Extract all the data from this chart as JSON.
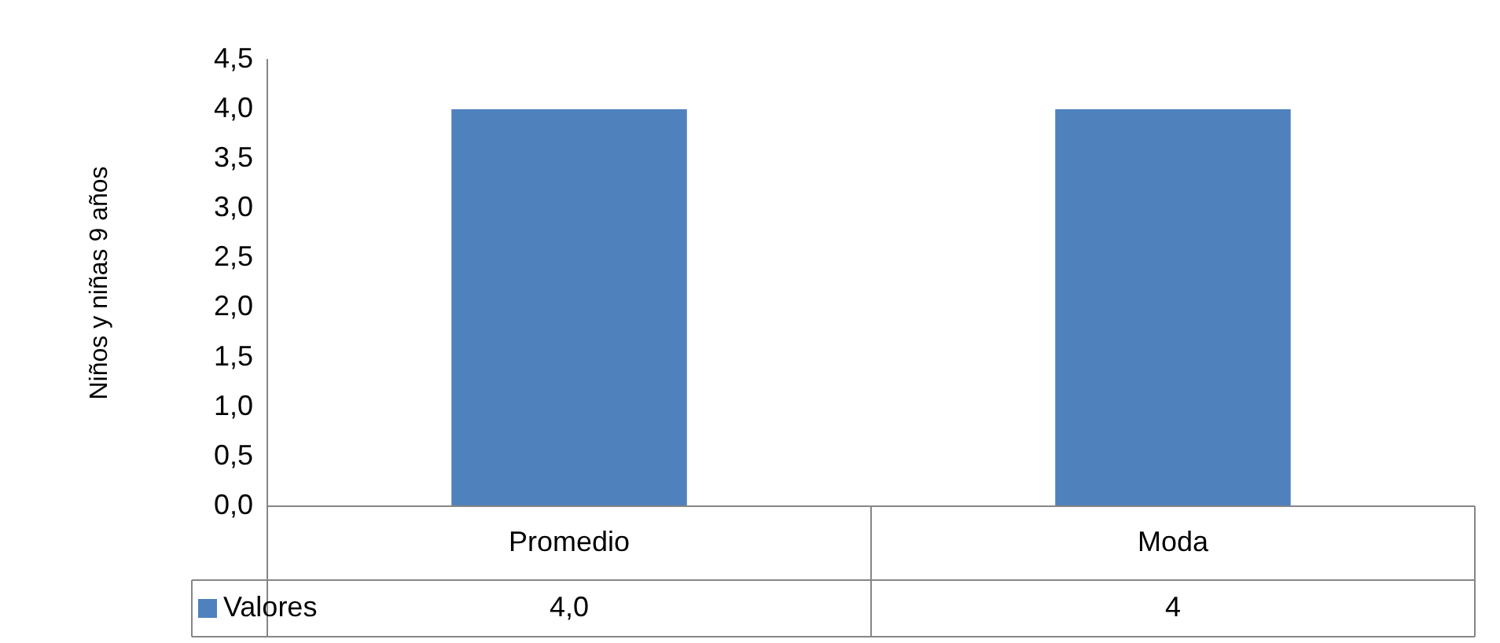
{
  "chart_data": {
    "type": "bar",
    "ylabel": "Niños y niñas 9 años",
    "categories": [
      "Promedio",
      "Moda"
    ],
    "series": [
      {
        "name": "Valores",
        "color": "#4f81bd",
        "values": [
          4.0,
          4
        ],
        "value_labels": [
          "4,0",
          "4"
        ]
      }
    ],
    "ylim": [
      0,
      4.5
    ],
    "yticks": [
      {
        "value": 0,
        "label": "0,0"
      },
      {
        "value": 0.5,
        "label": "0,5"
      },
      {
        "value": 1,
        "label": "1,0"
      },
      {
        "value": 1.5,
        "label": "1,5"
      },
      {
        "value": 2,
        "label": "2,0"
      },
      {
        "value": 2.5,
        "label": "2,5"
      },
      {
        "value": 3,
        "label": "3,0"
      },
      {
        "value": 3.5,
        "label": "3,5"
      },
      {
        "value": 4,
        "label": "4,0"
      },
      {
        "value": 4.5,
        "label": "4,5"
      }
    ],
    "grid": false,
    "legend": "bottom"
  }
}
